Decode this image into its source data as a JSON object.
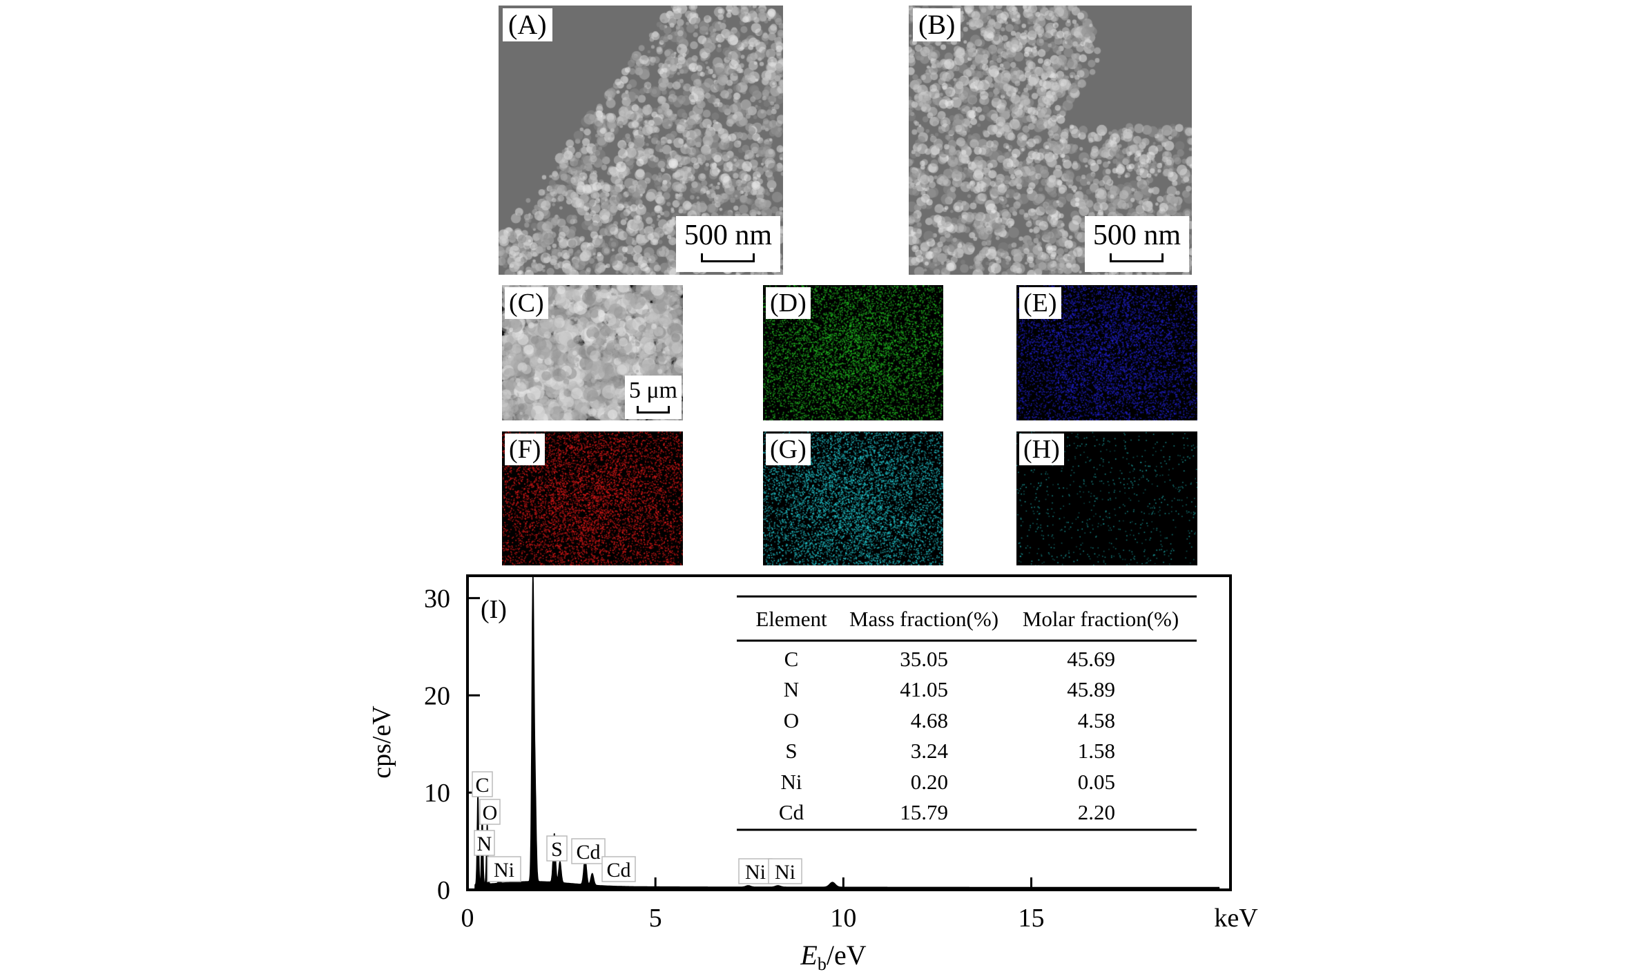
{
  "panels": [
    {
      "label": "(A)",
      "kind": "sem",
      "scale": "500 nm"
    },
    {
      "label": "(B)",
      "kind": "sem",
      "scale": "500 nm"
    },
    {
      "label": "(C)",
      "kind": "sem",
      "scale": "5 μm"
    },
    {
      "label": "(D)",
      "kind": "map",
      "color": "#22c022"
    },
    {
      "label": "(E)",
      "kind": "map",
      "color": "#2020d0"
    },
    {
      "label": "(F)",
      "kind": "map",
      "color": "#e01818"
    },
    {
      "label": "(G)",
      "kind": "map",
      "color": "#22c8d0"
    },
    {
      "label": "(H)",
      "kind": "map",
      "color": "#1aa0a0"
    }
  ],
  "chart_data": {
    "type": "line",
    "panel_label": "(I)",
    "xlabel_main": "E",
    "xlabel_sub": "b",
    "xlabel_unit": "/eV",
    "x_unit_label": "keV",
    "ylabel": "cps/eV",
    "xlim": [
      0,
      20.3
    ],
    "ylim": [
      0,
      32.3
    ],
    "xticks": [
      "0",
      "5",
      "10",
      "15"
    ],
    "xtick_values": [
      0,
      5,
      10,
      15
    ],
    "yticks": [
      "0",
      "10",
      "20",
      "30"
    ],
    "ytick_values": [
      0,
      10,
      20,
      30
    ],
    "grid": false,
    "fill_color": "#000000",
    "peaks": [
      {
        "energy": 0.277,
        "cps": 9.8
      },
      {
        "energy": 0.392,
        "cps": 7.0
      },
      {
        "energy": 0.525,
        "cps": 6.2
      },
      {
        "energy": 0.85,
        "cps": 0.6
      },
      {
        "energy": 1.74,
        "cps": 31.0
      },
      {
        "energy": 1.8,
        "cps": 9.0
      },
      {
        "energy": 2.31,
        "cps": 5.0
      },
      {
        "energy": 2.46,
        "cps": 2.2
      },
      {
        "energy": 3.13,
        "cps": 2.8
      },
      {
        "energy": 3.32,
        "cps": 1.2
      },
      {
        "energy": 7.47,
        "cps": 0.15
      },
      {
        "energy": 8.26,
        "cps": 0.15
      },
      {
        "energy": 9.71,
        "cps": 0.5
      }
    ],
    "peak_labels": [
      {
        "text": "C",
        "energy": 0.277
      },
      {
        "text": "O",
        "energy": 0.525
      },
      {
        "text": "N",
        "energy": 0.392
      },
      {
        "text": "Ni",
        "energy": 0.85
      },
      {
        "text": "S",
        "energy": 2.31
      },
      {
        "text": "Cd",
        "energy": 3.13
      },
      {
        "text": "Cd",
        "energy": 3.32
      },
      {
        "text": "Ni",
        "energy": 7.47
      },
      {
        "text": "Ni",
        "energy": 8.26
      }
    ],
    "table": {
      "headers": [
        "Element",
        "Mass fraction(%)",
        "Molar fraction(%)"
      ],
      "rows": [
        [
          "C",
          "35.05",
          "45.69"
        ],
        [
          "N",
          "41.05",
          "45.89"
        ],
        [
          "O",
          "4.68",
          "4.58"
        ],
        [
          "S",
          "3.24",
          "1.58"
        ],
        [
          "Ni",
          "0.20",
          "0.05"
        ],
        [
          "Cd",
          "15.79",
          "2.20"
        ]
      ]
    }
  }
}
